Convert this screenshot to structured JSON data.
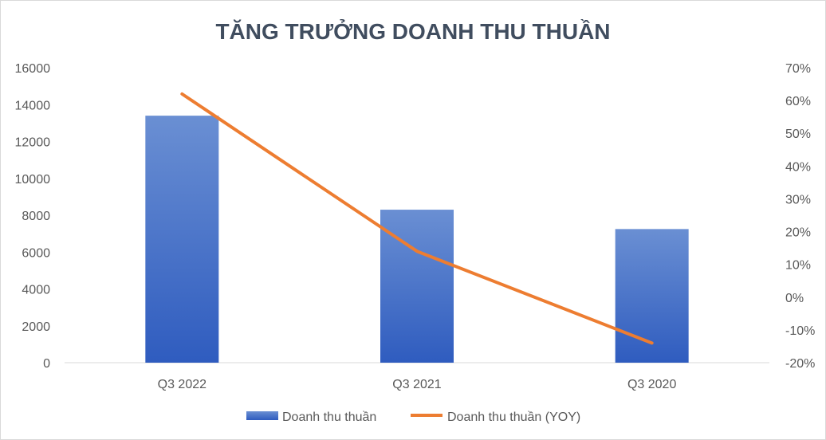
{
  "chart_data": {
    "type": "bar+line",
    "title": "TĂNG TRƯỞNG DOANH THU THUẦN",
    "categories": [
      "Q3 2022",
      "Q3 2021",
      "Q3 2020"
    ],
    "series": [
      {
        "name": "Doanh thu thuần",
        "type": "bar",
        "axis": "left",
        "values": [
          13400,
          8300,
          7250
        ],
        "color": "#4472c4"
      },
      {
        "name": "Doanh thu thuần (YOY)",
        "type": "line",
        "axis": "right",
        "values": [
          62,
          14,
          -14
        ],
        "color": "#ed7d31"
      }
    ],
    "y_left": {
      "min": 0,
      "max": 16000,
      "ticks": [
        "16000",
        "14000",
        "12000",
        "10000",
        "8000",
        "6000",
        "4000",
        "2000",
        "0"
      ]
    },
    "y_right": {
      "min": -20,
      "max": 70,
      "ticks": [
        "70%",
        "60%",
        "50%",
        "40%",
        "30%",
        "20%",
        "10%",
        "0%",
        "-10%",
        "-20%"
      ]
    },
    "grid": false,
    "legend": "bottom",
    "colors": {
      "title": "#404d5f",
      "axis_text": "#595959",
      "axis_line": "#d9d9d9"
    }
  }
}
